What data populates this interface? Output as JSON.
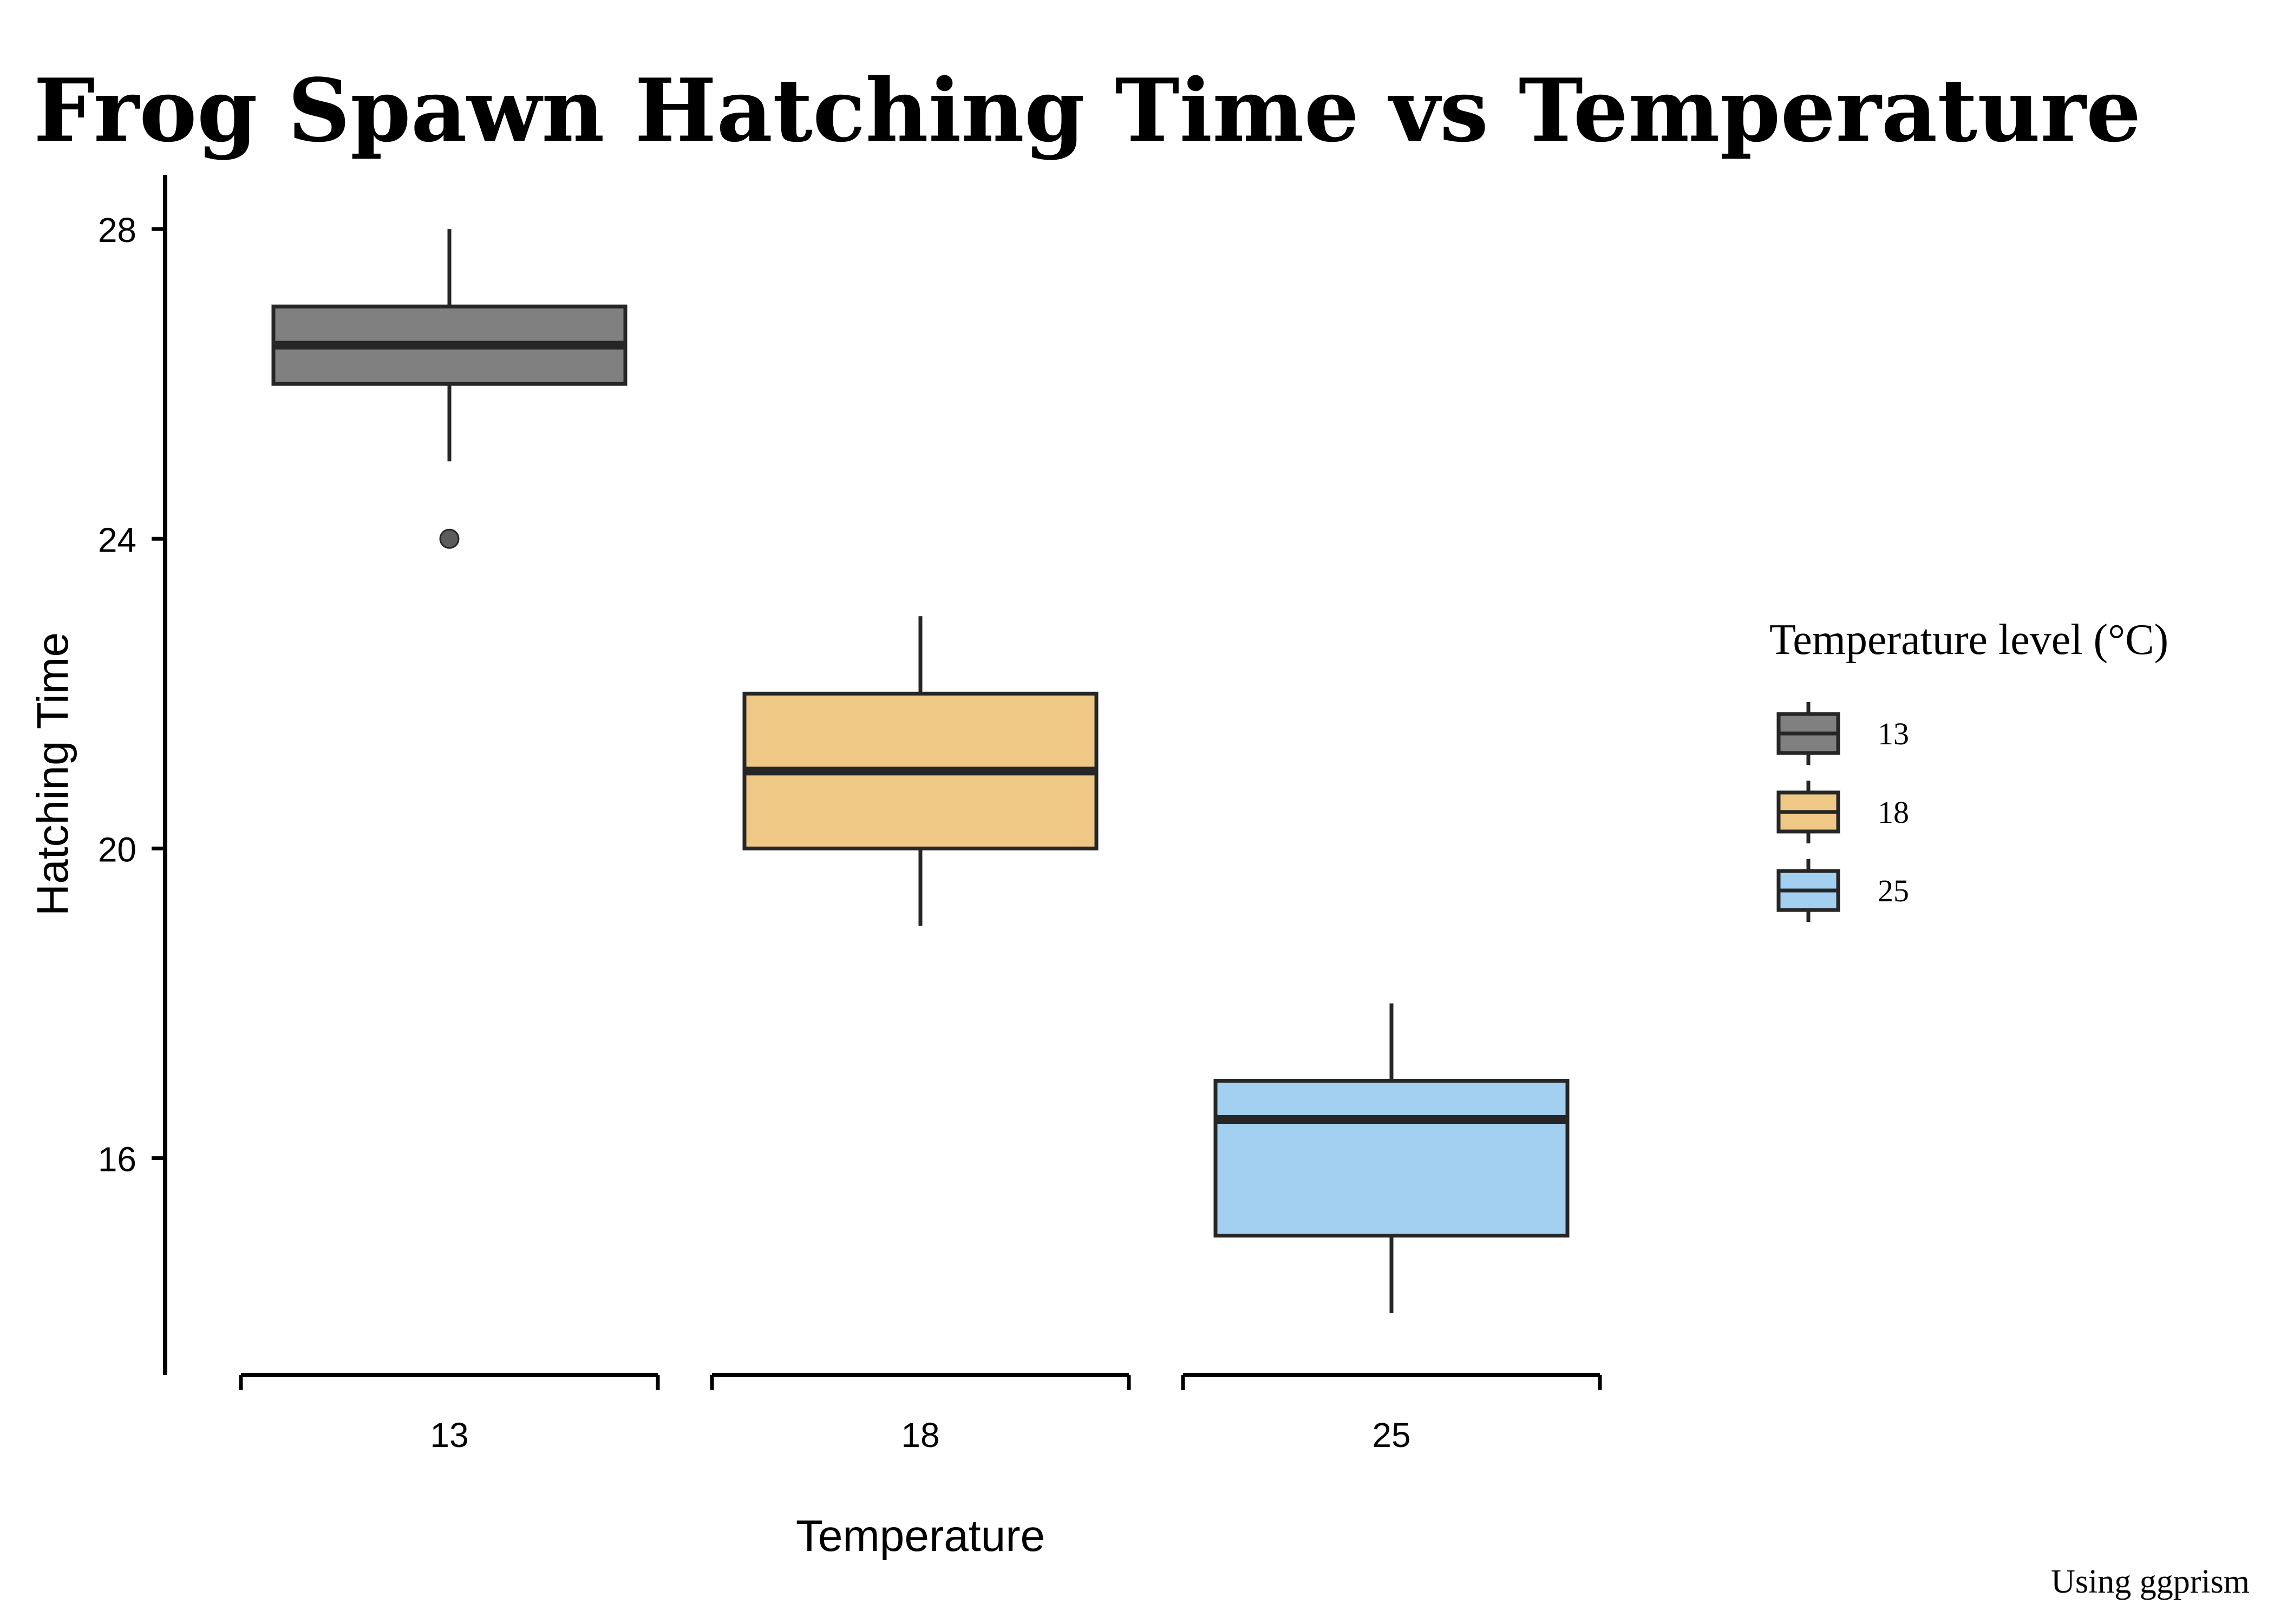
{
  "chart_data": {
    "type": "box",
    "title": "Frog Spawn Hatching Time vs Temperature",
    "xlabel": "Temperature",
    "ylabel": "Hatching Time",
    "caption": "Using ggprism",
    "categories": [
      "13",
      "18",
      "25"
    ],
    "y_ticks": [
      16,
      20,
      24,
      28
    ],
    "ylim": [
      13.2,
      28.7
    ],
    "boxes": [
      {
        "category": "13",
        "lower_whisker": 25,
        "q1": 26,
        "median": 26.5,
        "q3": 27,
        "upper_whisker": 28,
        "outliers": [
          24
        ],
        "fill": "#808080"
      },
      {
        "category": "18",
        "lower_whisker": 19,
        "q1": 20,
        "median": 21,
        "q3": 22,
        "upper_whisker": 23,
        "outliers": [],
        "fill": "#f0c886"
      },
      {
        "category": "25",
        "lower_whisker": 14,
        "q1": 15,
        "median": 16.5,
        "q3": 17,
        "upper_whisker": 18,
        "outliers": [],
        "fill": "#a3d0f0"
      }
    ],
    "legend": {
      "title": "Temperature level (°C)",
      "position": "right",
      "items": [
        "13",
        "18",
        "25"
      ]
    },
    "grid": false
  }
}
